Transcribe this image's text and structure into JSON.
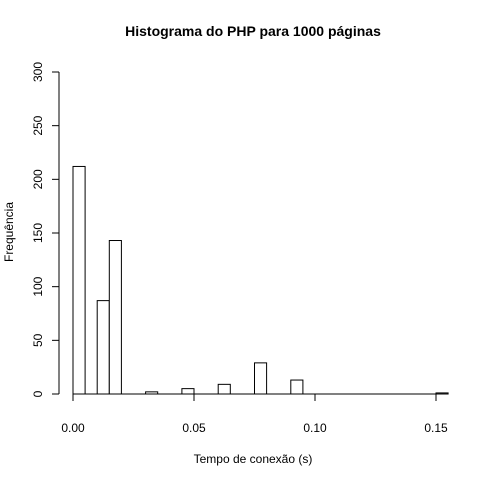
{
  "chart_data": {
    "type": "bar",
    "title": "Histograma do PHP para 1000 páginas",
    "xlabel": "Tempo de conexão (s)",
    "ylabel": "Frequência",
    "xlim": [
      0,
      0.155
    ],
    "ylim": [
      0,
      300
    ],
    "x_ticks": [
      0,
      0.05,
      0.1,
      0.15
    ],
    "x_tick_labels": [
      "0.00",
      "0.05",
      "0.10",
      "0.15"
    ],
    "y_ticks": [
      0,
      50,
      100,
      150,
      200,
      250,
      300
    ],
    "y_tick_labels": [
      "0",
      "50",
      "100",
      "150",
      "200",
      "250",
      "300"
    ],
    "bin_width": 0.005,
    "bins": [
      {
        "start": 0.0,
        "value": 212
      },
      {
        "start": 0.005,
        "value": 0
      },
      {
        "start": 0.01,
        "value": 87
      },
      {
        "start": 0.015,
        "value": 143
      },
      {
        "start": 0.02,
        "value": 0
      },
      {
        "start": 0.025,
        "value": 0
      },
      {
        "start": 0.03,
        "value": 2
      },
      {
        "start": 0.035,
        "value": 0
      },
      {
        "start": 0.04,
        "value": 0
      },
      {
        "start": 0.045,
        "value": 5
      },
      {
        "start": 0.05,
        "value": 0
      },
      {
        "start": 0.055,
        "value": 0
      },
      {
        "start": 0.06,
        "value": 9
      },
      {
        "start": 0.065,
        "value": 0
      },
      {
        "start": 0.07,
        "value": 0
      },
      {
        "start": 0.075,
        "value": 29
      },
      {
        "start": 0.08,
        "value": 0
      },
      {
        "start": 0.085,
        "value": 0
      },
      {
        "start": 0.09,
        "value": 13
      },
      {
        "start": 0.095,
        "value": 0
      },
      {
        "start": 0.1,
        "value": 0
      },
      {
        "start": 0.105,
        "value": 0
      },
      {
        "start": 0.11,
        "value": 0
      },
      {
        "start": 0.115,
        "value": 0
      },
      {
        "start": 0.12,
        "value": 0
      },
      {
        "start": 0.125,
        "value": 0
      },
      {
        "start": 0.13,
        "value": 0
      },
      {
        "start": 0.135,
        "value": 0
      },
      {
        "start": 0.14,
        "value": 0
      },
      {
        "start": 0.145,
        "value": 0
      },
      {
        "start": 0.15,
        "value": 1
      }
    ],
    "grid": false,
    "legend": "none"
  }
}
